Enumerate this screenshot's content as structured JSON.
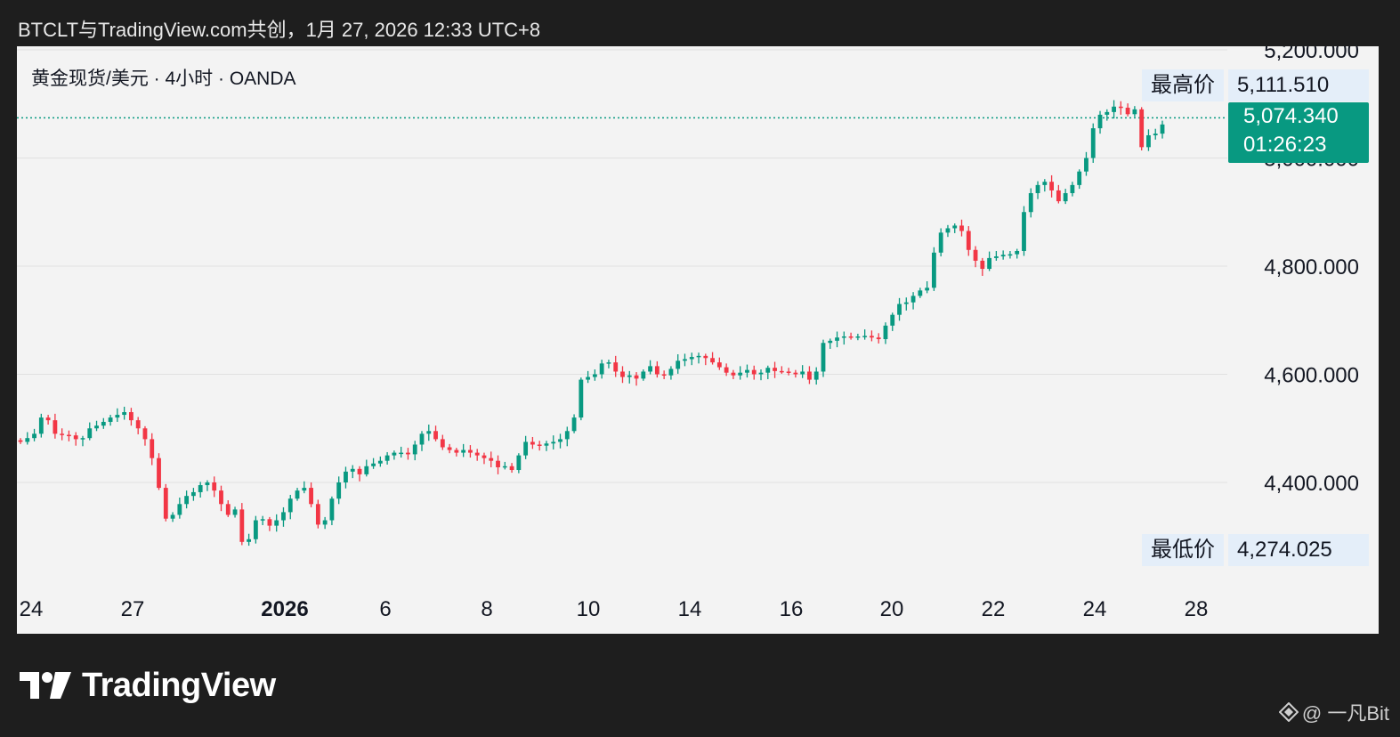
{
  "header": {
    "title": "BTCLT与TradingView.com共创，1月 27, 2026 12:33 UTC+8"
  },
  "symbol": {
    "label": "黄金现货/美元 · 4小时 · OANDA"
  },
  "tags": {
    "high_label": "最高价",
    "high_value": "5,111.510",
    "low_label": "最低价",
    "low_value": "4,274.025",
    "last_price": "5,074.340",
    "countdown": "01:26:23"
  },
  "footer": {
    "brand": "TradingView",
    "watermark": "@ 一凡Bit"
  },
  "colors": {
    "up": "#089981",
    "down": "#f23645",
    "background": "#f3f3f3",
    "grid": "#e1e1e1"
  },
  "chart_data": {
    "type": "candlestick",
    "title": "黄金现货/美元 · 4小时 · OANDA",
    "ylim": [
      4220,
      5220
    ],
    "y_ticks": [
      4400,
      4600,
      4800,
      5000,
      5200
    ],
    "y_tick_labels": [
      "4,400.000",
      "4,600.000",
      "4,800.000",
      "5,000.000",
      "5,200.000"
    ],
    "x_ticks": [
      {
        "label": "24",
        "bold": false
      },
      {
        "label": "27",
        "bold": false
      },
      {
        "label": "2026",
        "bold": true
      },
      {
        "label": "6",
        "bold": false
      },
      {
        "label": "8",
        "bold": false
      },
      {
        "label": "10",
        "bold": false
      },
      {
        "label": "14",
        "bold": false
      },
      {
        "label": "16",
        "bold": false
      },
      {
        "label": "20",
        "bold": false
      },
      {
        "label": "22",
        "bold": false
      },
      {
        "label": "24",
        "bold": false
      },
      {
        "label": "28",
        "bold": false
      }
    ],
    "grid": true,
    "last_price": 5074.34,
    "high": 5111.51,
    "low": 4274.025,
    "closes": [
      4475,
      4482,
      4490,
      4520,
      4515,
      4490,
      4488,
      4487,
      4480,
      4482,
      4500,
      4505,
      4512,
      4520,
      4525,
      4530,
      4515,
      4500,
      4480,
      4445,
      4390,
      4333,
      4340,
      4360,
      4375,
      4382,
      4395,
      4400,
      4385,
      4360,
      4340,
      4350,
      4290,
      4295,
      4330,
      4332,
      4320,
      4330,
      4345,
      4370,
      4385,
      4390,
      4360,
      4322,
      4330,
      4370,
      4400,
      4420,
      4425,
      4415,
      4430,
      4435,
      4440,
      4450,
      4455,
      4455,
      4452,
      4470,
      4490,
      4495,
      4480,
      4465,
      4460,
      4455,
      4460,
      4455,
      4450,
      4445,
      4440,
      4428,
      4430,
      4423,
      4450,
      4475,
      4470,
      4468,
      4472,
      4475,
      4480,
      4495,
      4520,
      4590,
      4595,
      4600,
      4620,
      4622,
      4605,
      4595,
      4598,
      4592,
      4605,
      4615,
      4600,
      4598,
      4610,
      4625,
      4628,
      4632,
      4634,
      4630,
      4622,
      4613,
      4603,
      4598,
      4603,
      4608,
      4600,
      4603,
      4612,
      4606,
      4605,
      4603,
      4600,
      4605,
      4590,
      4605,
      4658,
      4662,
      4668,
      4670,
      4668,
      4670,
      4671,
      4668,
      4665,
      4690,
      4710,
      4730,
      4733,
      4745,
      4755,
      4760,
      4825,
      4862,
      4870,
      4875,
      4865,
      4830,
      4810,
      4795,
      4815,
      4818,
      4821,
      4822,
      4828,
      4900,
      4935,
      4950,
      4956,
      4940,
      4920,
      4935,
      4950,
      4975,
      5000,
      5055,
      5080,
      5085,
      5095,
      5093,
      5081,
      5090,
      5020,
      5042,
      5045,
      5062
    ]
  }
}
